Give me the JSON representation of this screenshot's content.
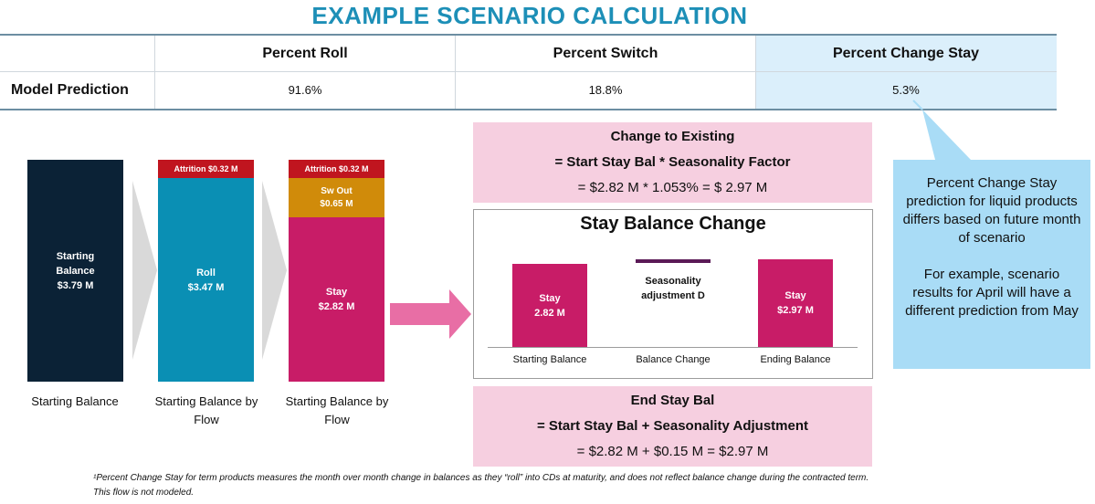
{
  "title": "EXAMPLE SCENARIO CALCULATION",
  "table": {
    "headers": [
      "",
      "Percent Roll",
      "Percent Switch",
      "Percent Change Stay"
    ],
    "row_label": "Model Prediction",
    "values": [
      "91.6%",
      "18.8%",
      "5.3%"
    ]
  },
  "bars": {
    "starting": {
      "label_line1": "Starting",
      "label_line2": "Balance",
      "value": "$3.79 M",
      "caption": "Starting Balance"
    },
    "by_flow_1": {
      "attrition": "Attrition $0.32 M",
      "roll_label": "Roll",
      "roll_value": "$3.47 M",
      "caption_line1": "Starting Balance by",
      "caption_line2": "Flow"
    },
    "by_flow_2": {
      "attrition": "Attrition $0.32 M",
      "switch_label": "Sw Out",
      "switch_value": "$0.65 M",
      "stay_label": "Stay",
      "stay_value": "$2.82 M",
      "caption_line1": "Starting Balance by",
      "caption_line2": "Flow"
    }
  },
  "change_box": {
    "line1": "Change to Existing",
    "line2": "= Start Stay Bal * Seasonality Factor",
    "line3": "= $2.82 M  * 1.053% = $ 2.97 M"
  },
  "stay_chart": {
    "title": "Stay Balance Change",
    "start_label": "Stay",
    "start_value": "2.82 M",
    "adj_line1": "Seasonality",
    "adj_line2": "adjustment D",
    "end_label": "Stay",
    "end_value": "$2.97 M",
    "categories": [
      "Starting Balance",
      "Balance Change",
      "Ending Balance"
    ]
  },
  "end_box": {
    "line1": "End Stay Bal",
    "line2": "= Start Stay Bal + Seasonality Adjustment",
    "line3": "= $2.82 M + $0.15 M = $2.97 M"
  },
  "callout": {
    "para1": "Percent Change Stay prediction for liquid products differs based on future month of scenario",
    "para2": "For example, scenario results for April will have a different prediction from May"
  },
  "footnote": {
    "line1": "¹Percent Change Stay for term products measures the month over month change in balances as they “roll” into CDs at maturity, and does not reflect balance change during the contracted term.",
    "line2": "This flow is not modeled."
  },
  "colors": {
    "navy": "#0b2236",
    "teal": "#0a8fb4",
    "red": "#c0151f",
    "orange": "#d08b0a",
    "magenta": "#c81c67",
    "purple": "#5b1a57",
    "pink_box": "#f6cfe0",
    "blue_callout": "#a9dcf6",
    "arrow_pink": "#e86ea5",
    "arrow_gray": "#d9d9d9"
  }
}
